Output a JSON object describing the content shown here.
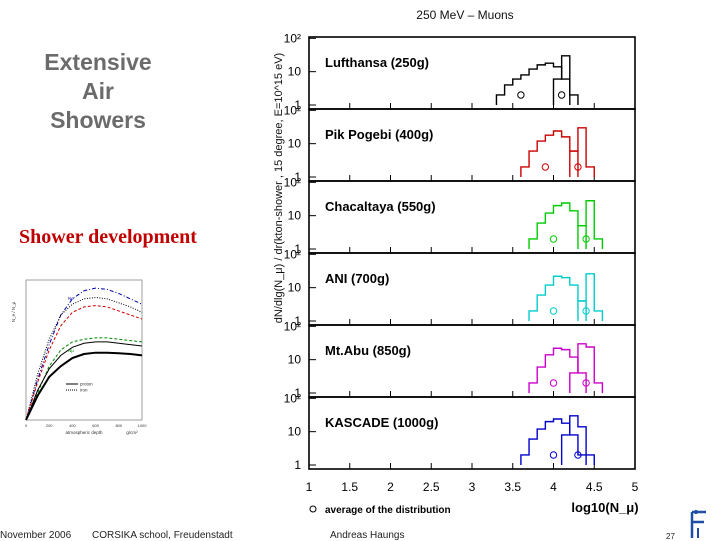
{
  "slide": {
    "title": "Extensive\nAir\nShowers",
    "section_label": "Shower development",
    "footer_date": "November 2006",
    "footer_event": "CORSIKA school, Freudenstadt",
    "footer_author": "Andreas Haungs",
    "page_number": "27"
  },
  "chart_data": [
    {
      "type": "line",
      "subtype": "step-histogram-panels",
      "title": "250 MeV – Muons",
      "ylabel": "dN/dlg(N_μ) / dr(kton-shower , 15 degree, E=10^15 eV)",
      "xlabel": "log10(N_μ)",
      "xlim": [
        1,
        5
      ],
      "x_ticks": [
        "1",
        "1.5",
        "2",
        "2.5",
        "3",
        "3.5",
        "4",
        "4.5",
        "5"
      ],
      "y_scale": "log",
      "y_ticks": [
        "1",
        "10",
        "10²"
      ],
      "legend_marker_label": "average of the distribution",
      "panels": [
        {
          "label": "Lufthansa (250g)",
          "color": "#000000",
          "lines": [
            {
              "x": [
                3.3,
                3.4,
                3.5,
                3.6,
                3.7,
                3.8,
                3.9,
                4.0,
                4.1
              ],
              "y": [
                2,
                4,
                6,
                8,
                12,
                16,
                18,
                14,
                6
              ]
            },
            {
              "x": [
                4.0,
                4.1,
                4.2
              ],
              "y": [
                6,
                30,
                2
              ]
            }
          ],
          "averages": [
            3.6,
            4.1
          ]
        },
        {
          "label": "Pik Pogebi (400g)",
          "color": "#cc0000",
          "lines": [
            {
              "x": [
                3.6,
                3.7,
                3.8,
                3.9,
                4.0,
                4.1,
                4.2
              ],
              "y": [
                2,
                6,
                12,
                18,
                24,
                16,
                6
              ]
            },
            {
              "x": [
                4.2,
                4.3,
                4.4
              ],
              "y": [
                6,
                30,
                2
              ]
            }
          ],
          "averages": [
            3.9,
            4.3
          ]
        },
        {
          "label": "Chacaltaya (550g)",
          "color": "#00cc00",
          "lines": [
            {
              "x": [
                3.7,
                3.8,
                3.9,
                4.0,
                4.1,
                4.2,
                4.3
              ],
              "y": [
                2,
                6,
                12,
                20,
                24,
                14,
                5
              ]
            },
            {
              "x": [
                4.3,
                4.4,
                4.5
              ],
              "y": [
                5,
                28,
                2
              ]
            }
          ],
          "averages": [
            4.0,
            4.4
          ]
        },
        {
          "label": "ANI (700g)",
          "color": "#00cccc",
          "lines": [
            {
              "x": [
                3.7,
                3.8,
                3.9,
                4.0,
                4.1,
                4.2,
                4.3
              ],
              "y": [
                2,
                6,
                12,
                22,
                20,
                12,
                4
              ]
            },
            {
              "x": [
                4.3,
                4.4,
                4.5
              ],
              "y": [
                4,
                26,
                2
              ]
            }
          ],
          "averages": [
            4.0,
            4.4
          ]
        },
        {
          "label": "Mt.Abu (850g)",
          "color": "#cc00cc",
          "lines": [
            {
              "x": [
                3.7,
                3.8,
                3.9,
                4.0,
                4.1,
                4.2,
                4.3
              ],
              "y": [
                2,
                6,
                14,
                22,
                20,
                12,
                4
              ]
            },
            {
              "x": [
                4.2,
                4.3,
                4.4,
                4.5
              ],
              "y": [
                4,
                30,
                24,
                2
              ]
            }
          ],
          "averages": [
            4.0,
            4.4
          ]
        },
        {
          "label": "KASCADE (1000g)",
          "color": "#0000cc",
          "lines": [
            {
              "x": [
                3.6,
                3.7,
                3.8,
                3.9,
                4.0,
                4.1,
                4.2,
                4.3
              ],
              "y": [
                2,
                6,
                12,
                20,
                24,
                18,
                8,
                2
              ]
            },
            {
              "x": [
                4.1,
                4.2,
                4.3,
                4.4
              ],
              "y": [
                8,
                30,
                14,
                2
              ]
            }
          ],
          "averages": [
            4.0,
            4.3
          ]
        }
      ]
    },
    {
      "type": "line",
      "subtype": "thumbnail",
      "ylabel": "N_e / N_μ",
      "xlabel": "atmospheric depth",
      "x_unit": "g/cm²",
      "x_ticks": [
        "0",
        "100",
        "200",
        "300",
        "400",
        "500",
        "600",
        "700",
        "800",
        "900",
        "1000"
      ],
      "legend": [
        "proton",
        "iron"
      ],
      "annotations": [
        "Ne",
        "Nμ"
      ],
      "series": [
        {
          "color": "#0000aa",
          "style": "dash-dot",
          "values": [
            0,
            1.5,
            2.8,
            3.9,
            4.5,
            4.8,
            4.9,
            4.85,
            4.7,
            4.5,
            4.3
          ]
        },
        {
          "color": "#000000",
          "style": "dotted",
          "values": [
            0,
            1.7,
            3.0,
            3.9,
            4.3,
            4.5,
            4.55,
            4.5,
            4.35,
            4.2,
            4.0
          ]
        },
        {
          "color": "#cc0000",
          "style": "dash",
          "values": [
            0,
            1.4,
            2.6,
            3.5,
            4.0,
            4.2,
            4.25,
            4.2,
            4.05,
            3.9,
            3.75
          ]
        },
        {
          "color": "#008800",
          "style": "dash",
          "values": [
            0,
            1.0,
            2.0,
            2.6,
            2.9,
            3.0,
            3.05,
            3.05,
            3.0,
            2.95,
            2.9
          ]
        },
        {
          "color": "#000000",
          "style": "solid",
          "values": [
            0,
            1.1,
            1.9,
            2.4,
            2.7,
            2.85,
            2.9,
            2.9,
            2.85,
            2.8,
            2.75
          ]
        },
        {
          "color": "#000000",
          "style": "solid-thick",
          "values": [
            0,
            0.9,
            1.6,
            2.0,
            2.3,
            2.45,
            2.5,
            2.5,
            2.48,
            2.45,
            2.4
          ]
        }
      ]
    }
  ]
}
